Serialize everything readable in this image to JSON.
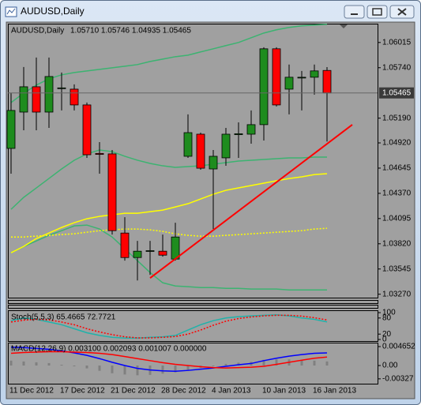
{
  "window_title": "AUDUSD,Daily",
  "chart_data": [
    {
      "type": "candlestick",
      "title": "AUDUSD,Daily",
      "info": "1.05710 1.05746 1.04935 1.05465",
      "categories": [
        "11 Dec 2012",
        null,
        null,
        null,
        "17 Dec 2012",
        null,
        null,
        null,
        "21 Dec 2012",
        null,
        null,
        null,
        "28 Dec 2012",
        null,
        null,
        null,
        "4 Jan 2013",
        null,
        null,
        null,
        "10 Jan 2013",
        null,
        null,
        null,
        "16 Jan 2013",
        null
      ],
      "candles": {
        "up_color": "#1e8c1e",
        "down_color": "#ff0000",
        "open": [
          1.0486,
          1.05256,
          1.05532,
          1.05256,
          1.05515,
          1.05506,
          1.05334,
          1.04805,
          1.048,
          1.03937,
          1.0367,
          1.0374,
          1.03739,
          1.03653,
          1.04774,
          1.05015,
          1.04636,
          1.04757,
          1.0501,
          1.05015,
          1.05119,
          1.05946,
          1.05506,
          1.0563,
          1.05636,
          1.0571
        ],
        "high": [
          1.05463,
          1.05748,
          1.05851,
          1.05851,
          1.05687,
          1.05558,
          1.0536,
          1.04929,
          1.04843,
          1.0411,
          1.03851,
          1.03851,
          1.0392,
          1.0405,
          1.05231,
          1.05032,
          1.04843,
          1.05084,
          1.05144,
          1.05274,
          1.05963,
          1.05963,
          1.05774,
          1.05705,
          1.05774,
          1.05746
        ],
        "low": [
          1.04584,
          1.05058,
          1.05058,
          1.05084,
          1.05274,
          1.05274,
          1.04757,
          1.04584,
          1.0392,
          1.03636,
          1.0342,
          1.03481,
          1.03679,
          1.03636,
          1.04757,
          1.04627,
          1.03981,
          1.0467,
          1.04757,
          1.04912,
          1.04946,
          1.05317,
          1.05231,
          1.05274,
          1.05446,
          1.04935
        ],
        "close": [
          1.05274,
          1.05532,
          1.05256,
          1.05644,
          1.0552,
          1.05334,
          1.04791,
          1.04795,
          1.03963,
          1.0367,
          1.03739,
          1.03745,
          1.03696,
          1.03894,
          1.05032,
          1.04644,
          1.04774,
          1.05015,
          1.0502,
          1.05119,
          1.05946,
          1.05334,
          1.05636,
          1.05636,
          1.05705,
          1.05465
        ]
      },
      "lines": [
        {
          "color": "#3cb371",
          "style": "solid",
          "values": [
            1.0536,
            1.05463,
            1.0555,
            1.05619,
            1.05662,
            1.05687,
            1.05705,
            1.05722,
            1.05739,
            1.05756,
            1.05774,
            1.05808,
            1.05834,
            1.0586,
            1.05877,
            1.05912,
            1.05946,
            1.05981,
            1.06015,
            1.06067,
            1.06118,
            1.06153,
            1.06179,
            1.06196,
            1.06205,
            1.06213
          ]
        },
        {
          "color": "#3cb371",
          "style": "solid",
          "values": [
            1.04196,
            1.04326,
            1.04429,
            1.04532,
            1.04636,
            1.04731,
            1.048,
            1.04843,
            1.04825,
            1.04774,
            1.04731,
            1.04696,
            1.0467,
            1.04653,
            1.04662,
            1.0467,
            1.04688,
            1.04705,
            1.04722,
            1.04731,
            1.04739,
            1.04748,
            1.04757,
            1.04757,
            1.04765,
            1.04765
          ]
        },
        {
          "color": "#3cb371",
          "style": "solid",
          "values": [
            1.03722,
            1.03791,
            1.03851,
            1.03912,
            1.03963,
            1.04015,
            1.04024,
            1.03981,
            1.03894,
            1.03765,
            1.03636,
            1.03507,
            1.03395,
            1.0336,
            1.03352,
            1.03343,
            1.03343,
            1.03334,
            1.03334,
            1.03326,
            1.03326,
            1.03326,
            1.03317,
            1.03317,
            1.03317,
            1.03317
          ]
        },
        {
          "color": "#ffff00",
          "style": "solid",
          "values": [
            1.03722,
            1.03791,
            1.03877,
            1.03937,
            1.03998,
            1.0405,
            1.04093,
            1.04119,
            1.04136,
            1.04153,
            1.04153,
            1.0417,
            1.04187,
            1.04222,
            1.04257,
            1.04308,
            1.0436,
            1.04403,
            1.04429,
            1.04455,
            1.04481,
            1.04507,
            1.04532,
            1.0455,
            1.04575,
            1.04584
          ]
        },
        {
          "color": "#ffff00",
          "style": "dotted",
          "values": [
            1.03894,
            1.03894,
            1.03903,
            1.03912,
            1.0392,
            1.03929,
            1.03946,
            1.03963,
            1.03972,
            1.03981,
            1.03981,
            1.03972,
            1.03955,
            1.03929,
            1.03912,
            1.03903,
            1.03903,
            1.03912,
            1.0392,
            1.03929,
            1.03937,
            1.03946,
            1.03955,
            1.03963,
            1.03981,
            1.03989
          ]
        }
      ],
      "trendline": {
        "color": "#ff0000",
        "x": [
          11,
          27
        ],
        "y": [
          1.03446,
          1.05119
        ]
      },
      "current_price": {
        "value": 1.05465,
        "label": "1.05465"
      },
      "ylim": [
        1.0325,
        1.0622
      ],
      "yticks": [
        1.06015,
        {
          "value": 1.0574,
          "label": "1.05740"
        },
        {
          "value": 1.0519,
          "label": "1.05190"
        },
        {
          "value": 1.0492,
          "label": "1.04920"
        },
        1.04645,
        {
          "value": 1.0437,
          "label": "1.04370"
        },
        1.04095,
        {
          "value": 1.0382,
          "label": "1.03820"
        },
        1.03545,
        {
          "value": 1.0327,
          "label": "1.03270"
        }
      ]
    },
    {
      "type": "line",
      "title": "Stoch(5,5,3) 65.4665 72.7721",
      "ylim": [
        0,
        100
      ],
      "yticks": [
        100,
        80,
        20,
        0
      ],
      "series": [
        {
          "color": "#20b2aa",
          "style": "solid",
          "values": [
            70,
            80,
            75,
            65,
            55,
            40,
            25,
            15,
            8,
            5,
            5,
            8,
            10,
            15,
            35,
            55,
            70,
            80,
            85,
            88,
            90,
            92,
            88,
            80,
            75,
            65.4665
          ]
        },
        {
          "color": "#ff0000",
          "style": "dotted",
          "values": [
            65,
            72,
            75,
            73,
            65,
            55,
            40,
            28,
            18,
            10,
            6,
            6,
            8,
            11,
            20,
            35,
            53,
            68,
            78,
            84,
            88,
            90,
            90,
            87,
            81,
            72.7721
          ]
        }
      ]
    },
    {
      "type": "macd",
      "title": "MACD(12,26,9) 0.003100 0.002093 0.001007 0.000000",
      "ylim": [
        -0.00446,
        0.00543
      ],
      "yticks": [
        0.004652,
        {
          "value": 0,
          "label": "0.00"
        },
        -0.00327
      ],
      "histogram": {
        "color": "#808080",
        "values": [
          0.0012,
          0.001,
          0.0008,
          0.0006,
          0.0002,
          -0.0002,
          -0.0007,
          -0.0013,
          -0.0019,
          -0.0022,
          -0.0024,
          -0.0023,
          -0.002,
          -0.0017,
          -0.0012,
          -0.0006,
          -0.0001,
          0.0004,
          0.0007,
          0.0009,
          0.0014,
          0.0015,
          0.0015,
          0.0014,
          0.0012,
          0.001007
        ]
      },
      "series": [
        {
          "color": "#0000ff",
          "style": "solid",
          "values": [
            0.0045,
            0.0044,
            0.0042,
            0.004,
            0.0036,
            0.0031,
            0.0025,
            0.0017,
            0.0008,
            0.0,
            -0.0007,
            -0.0011,
            -0.0013,
            -0.0014,
            -0.0012,
            -0.0009,
            -0.0006,
            -0.0002,
            0.0002,
            0.0005,
            0.0012,
            0.0018,
            0.0023,
            0.0027,
            0.003,
            0.0031
          ]
        },
        {
          "color": "#ff0000",
          "style": "solid",
          "values": [
            0.003,
            0.0032,
            0.0033,
            0.0034,
            0.0034,
            0.0033,
            0.0032,
            0.003,
            0.0027,
            0.0022,
            0.0017,
            0.0012,
            0.0007,
            0.0003,
            0,
            -0.0003,
            -0.0005,
            -0.0006,
            -0.0005,
            -0.0004,
            -0.0002,
            0.0003,
            0.0008,
            0.0013,
            0.0018,
            0.002093
          ]
        }
      ]
    }
  ]
}
